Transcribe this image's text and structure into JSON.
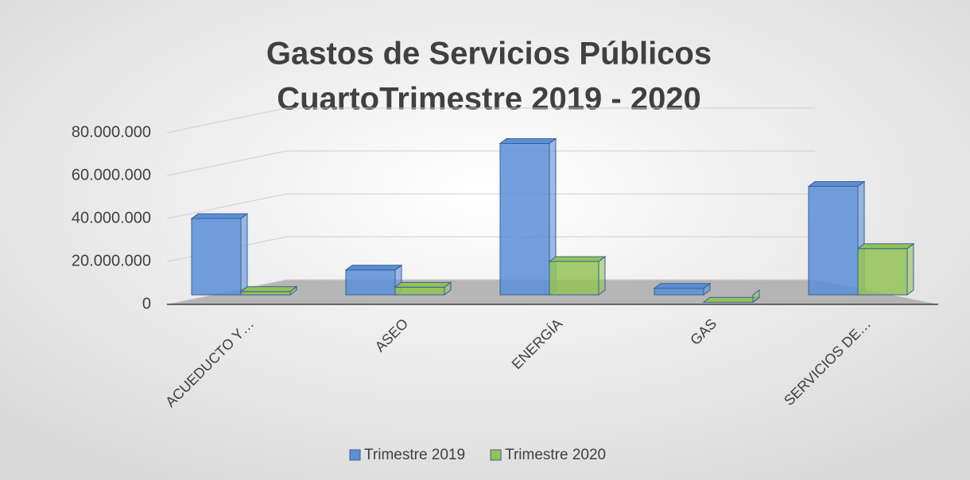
{
  "chart_data": {
    "type": "bar3d",
    "title": [
      "Gastos de Servicios Públicos",
      "CuartoTrimestre 2019 - 2020"
    ],
    "categories": [
      "ACUEDUCTO Y…",
      "ASEO",
      "ENERGÍA",
      "GAS",
      "SERVICIOS DE…"
    ],
    "series": [
      {
        "name": "Trimestre 2019",
        "color": "#5b8fd6",
        "values": [
          40000000,
          16000000,
          75000000,
          7500000,
          55000000
        ]
      },
      {
        "name": "Trimestre 2020",
        "color": "#92c353",
        "values": [
          6000000,
          8000000,
          20000000,
          1000000,
          26000000
        ]
      }
    ],
    "ylim": [
      0,
      80000000
    ],
    "yticks": [
      0,
      {
        "value": 20000000,
        "label": "20.000.000"
      },
      {
        "value": 40000000,
        "label": "40.000.000"
      },
      {
        "value": 60000000,
        "label": "60.000.000"
      },
      {
        "value": 80000000,
        "label": "80.000.000"
      }
    ],
    "legend": "bottom"
  }
}
